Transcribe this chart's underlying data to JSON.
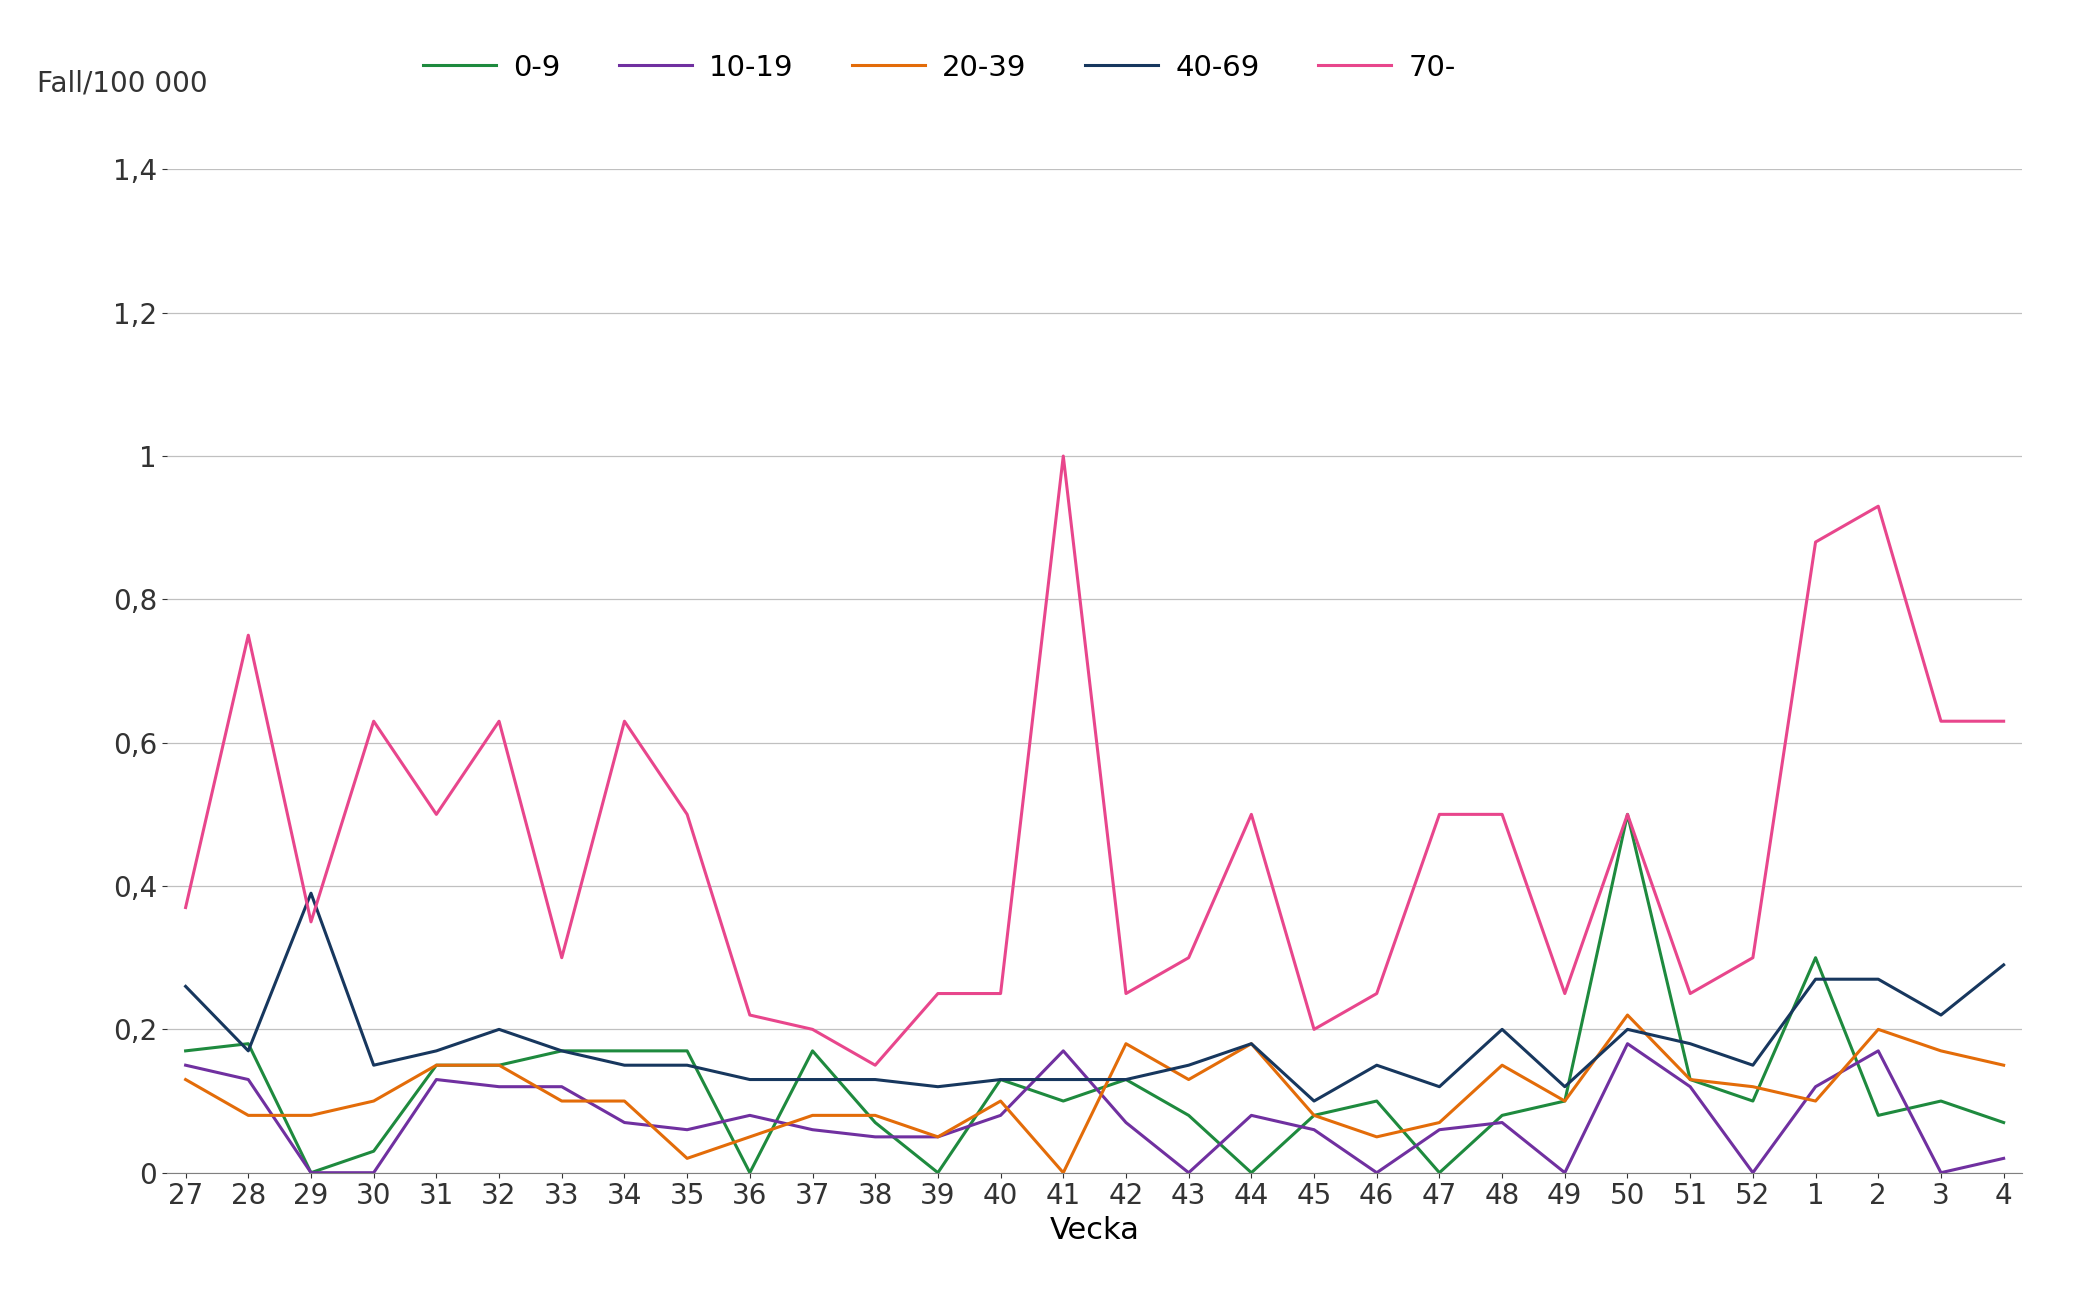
{
  "weeks": [
    27,
    28,
    29,
    30,
    31,
    32,
    33,
    34,
    35,
    36,
    37,
    38,
    39,
    40,
    41,
    42,
    43,
    44,
    45,
    46,
    47,
    48,
    49,
    50,
    51,
    52,
    1,
    2,
    3,
    4
  ],
  "series": {
    "0-9": [
      0.17,
      0.18,
      0.0,
      0.03,
      0.15,
      0.15,
      0.17,
      0.17,
      0.17,
      0.0,
      0.17,
      0.07,
      0.0,
      0.13,
      0.1,
      0.13,
      0.08,
      0.0,
      0.08,
      0.1,
      0.0,
      0.08,
      0.1,
      0.5,
      0.13,
      0.1,
      0.3,
      0.08,
      0.1,
      0.07
    ],
    "10-19": [
      0.15,
      0.13,
      0.0,
      0.0,
      0.13,
      0.12,
      0.12,
      0.07,
      0.06,
      0.08,
      0.06,
      0.05,
      0.05,
      0.08,
      0.17,
      0.07,
      0.0,
      0.08,
      0.06,
      0.0,
      0.06,
      0.07,
      0.0,
      0.18,
      0.12,
      0.0,
      0.12,
      0.17,
      0.0,
      0.02
    ],
    "20-39": [
      0.13,
      0.08,
      0.08,
      0.1,
      0.15,
      0.15,
      0.1,
      0.1,
      0.02,
      0.05,
      0.08,
      0.08,
      0.05,
      0.1,
      0.0,
      0.18,
      0.13,
      0.18,
      0.08,
      0.05,
      0.07,
      0.15,
      0.1,
      0.22,
      0.13,
      0.12,
      0.1,
      0.2,
      0.17,
      0.15
    ],
    "40-69": [
      0.26,
      0.17,
      0.39,
      0.15,
      0.17,
      0.2,
      0.17,
      0.15,
      0.15,
      0.13,
      0.13,
      0.13,
      0.12,
      0.13,
      0.13,
      0.13,
      0.15,
      0.18,
      0.1,
      0.15,
      0.12,
      0.2,
      0.12,
      0.2,
      0.18,
      0.15,
      0.27,
      0.27,
      0.22,
      0.29
    ],
    "70-": [
      0.37,
      0.75,
      0.35,
      0.63,
      0.5,
      0.63,
      0.3,
      0.63,
      0.5,
      0.22,
      0.2,
      0.15,
      0.25,
      0.25,
      1.0,
      0.25,
      0.3,
      0.5,
      0.2,
      0.25,
      0.5,
      0.5,
      0.25,
      0.5,
      0.25,
      0.3,
      0.88,
      0.93,
      0.63,
      0.63
    ]
  },
  "series_order": [
    "0-9",
    "10-19",
    "20-39",
    "40-69",
    "70-"
  ],
  "colors": {
    "0-9": "#1e8a3e",
    "10-19": "#7030a0",
    "20-39": "#e36c09",
    "40-69": "#17375e",
    "70-": "#e8468c"
  },
  "ylabel": "Fall/100 000",
  "xlabel": "Vecka",
  "ylim": [
    0,
    1.4
  ],
  "yticks": [
    0,
    0.2,
    0.4,
    0.6,
    0.8,
    1.0,
    1.2,
    1.4
  ],
  "background_color": "#ffffff",
  "grid_color": "#c0c0c0",
  "linewidth": 2.2,
  "axis_fontsize": 22,
  "tick_fontsize": 20,
  "legend_fontsize": 21,
  "ylabel_fontsize": 20
}
